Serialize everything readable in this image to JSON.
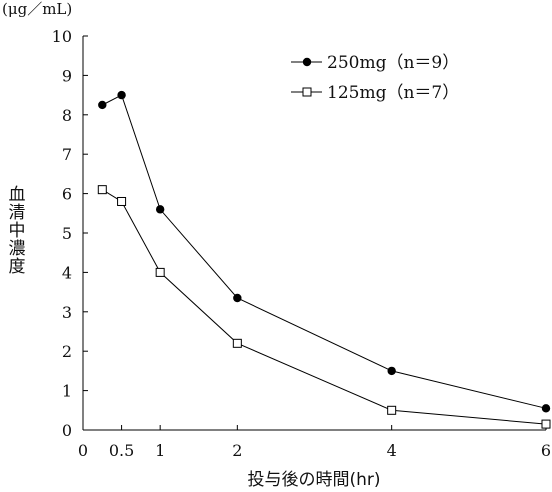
{
  "chart_data": {
    "type": "line",
    "unit_label": "(μg／mL)",
    "ylabel": "血清中濃度",
    "xlabel": "投与後の時間(hr)",
    "xlim": [
      0,
      6
    ],
    "ylim": [
      0,
      10
    ],
    "x_ticks": [
      0,
      0.5,
      1,
      2,
      4,
      6
    ],
    "x_tick_labels": [
      "0",
      "0.5",
      "1",
      "2",
      "4",
      "6"
    ],
    "y_ticks": [
      0,
      1,
      2,
      3,
      4,
      5,
      6,
      7,
      8,
      9,
      10
    ],
    "y_tick_labels": [
      "0",
      "1",
      "2",
      "3",
      "4",
      "5",
      "6",
      "7",
      "8",
      "9",
      "10"
    ],
    "grid": false,
    "legend_position": "top-right",
    "series": [
      {
        "name": "250mg（n＝9）",
        "marker": "filled-circle",
        "color": "#000000",
        "x": [
          0.25,
          0.5,
          1,
          2,
          4,
          6
        ],
        "y": [
          8.25,
          8.5,
          5.6,
          3.35,
          1.5,
          0.55
        ]
      },
      {
        "name": "125mg（n＝7）",
        "marker": "open-square",
        "color": "#000000",
        "x": [
          0.25,
          0.5,
          1,
          2,
          4,
          6
        ],
        "y": [
          6.1,
          5.8,
          4.0,
          2.2,
          0.5,
          0.15
        ]
      }
    ]
  }
}
